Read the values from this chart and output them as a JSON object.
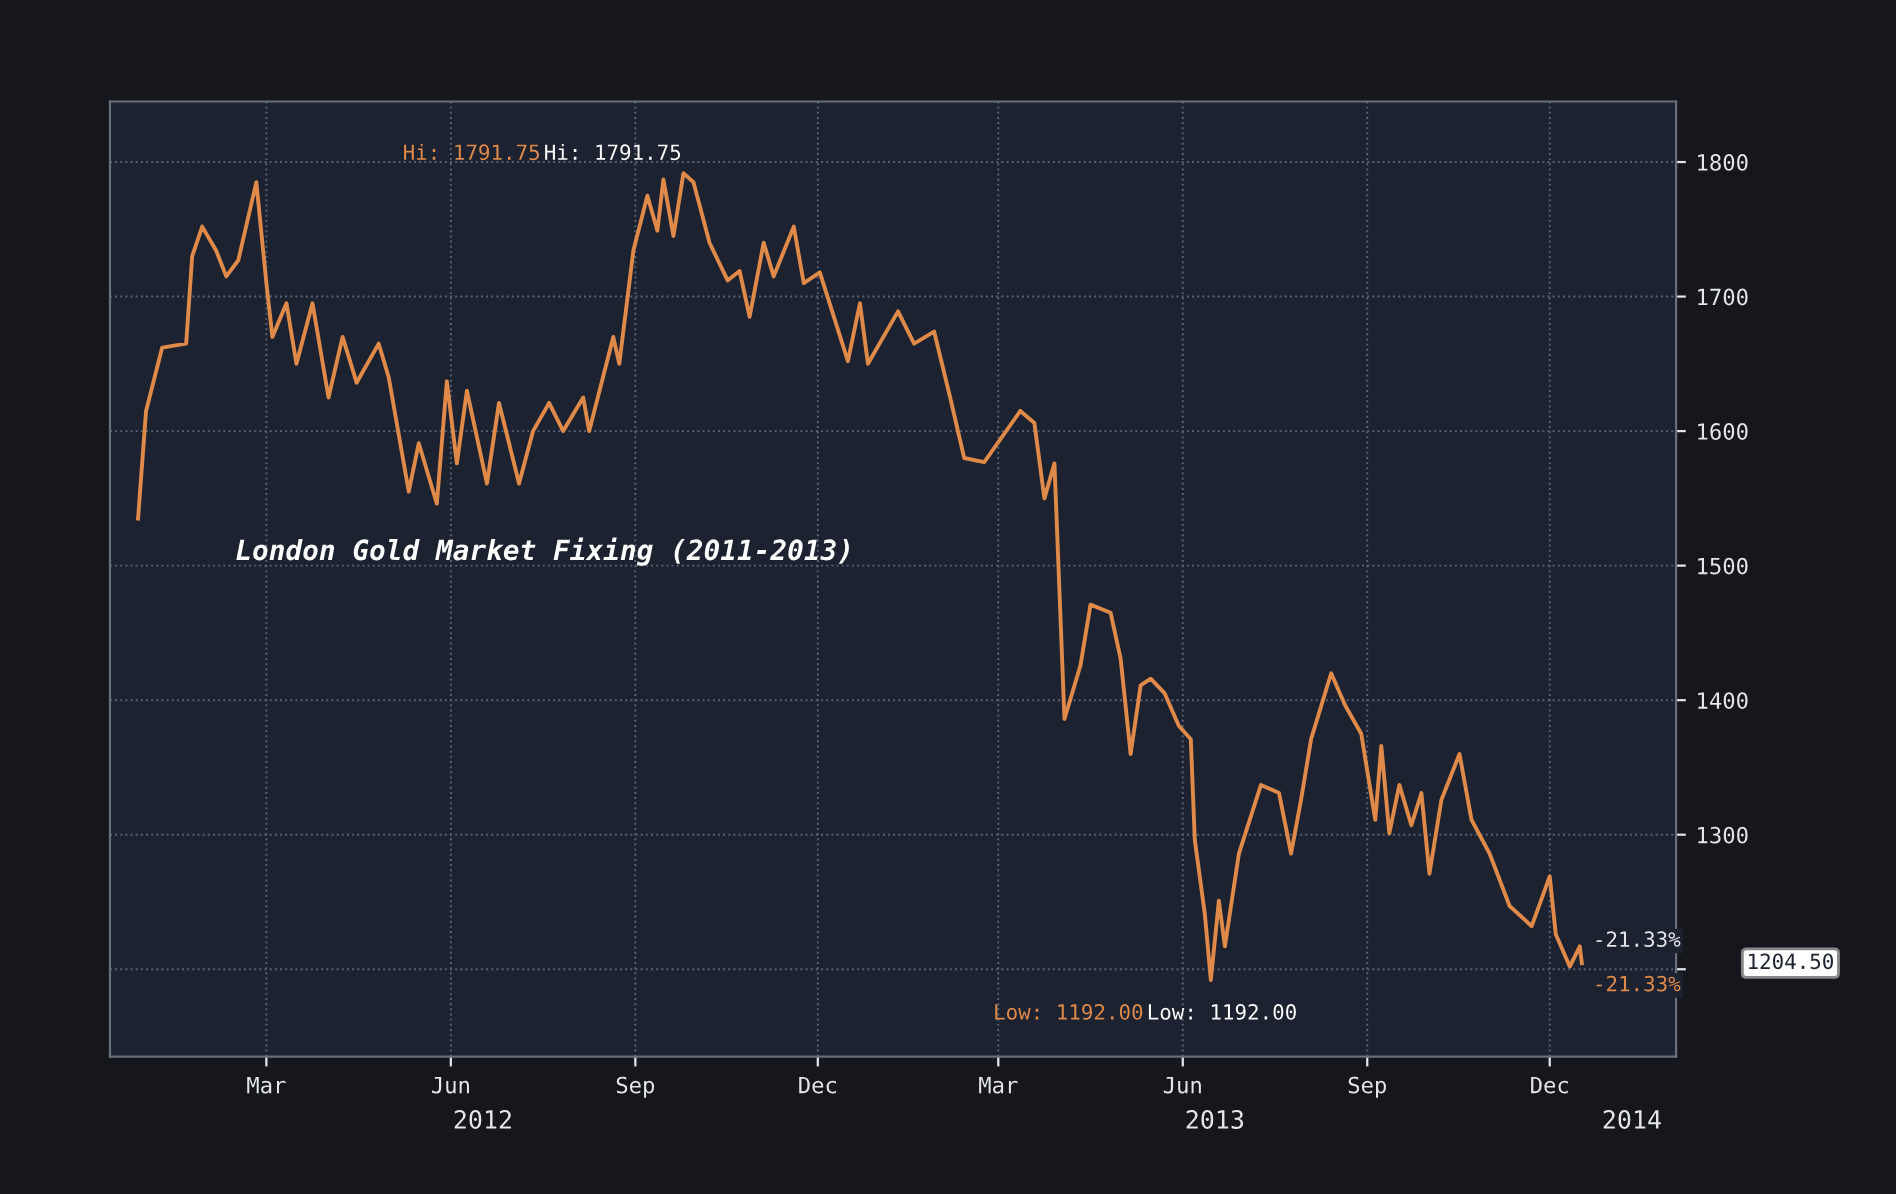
{
  "chart_data": {
    "type": "line",
    "title": "London Gold Market Fixing (2011-2013)",
    "x": [
      "2012-01-11",
      "2012-01-15",
      "2012-01-23",
      "2012-02-04",
      "2012-02-07",
      "2012-02-12",
      "2012-02-19",
      "2012-02-24",
      "2012-03-01",
      "2012-03-10",
      "2012-03-15",
      "2012-03-18",
      "2012-03-25",
      "2012-03-30",
      "2012-04-07",
      "2012-04-15",
      "2012-04-22",
      "2012-04-29",
      "2012-05-10",
      "2012-05-15",
      "2012-05-25",
      "2012-05-30",
      "2012-06-08",
      "2012-06-13",
      "2012-06-18",
      "2012-06-23",
      "2012-07-03",
      "2012-07-09",
      "2012-07-19",
      "2012-07-26",
      "2012-08-03",
      "2012-08-10",
      "2012-08-20",
      "2012-08-23",
      "2012-09-04",
      "2012-09-07",
      "2012-09-14",
      "2012-09-21",
      "2012-09-26",
      "2012-09-29",
      "2012-10-04",
      "2012-10-09",
      "2012-10-14",
      "2012-10-22",
      "2012-10-31",
      "2012-11-06",
      "2012-11-11",
      "2012-11-18",
      "2012-11-23",
      "2012-12-03",
      "2012-12-08",
      "2012-12-16",
      "2012-12-30",
      "2013-01-05",
      "2013-01-09",
      "2013-01-24",
      "2013-02-01",
      "2013-02-11",
      "2013-02-19",
      "2013-02-26",
      "2013-03-08",
      "2013-03-26",
      "2013-04-02",
      "2013-04-07",
      "2013-04-12",
      "2013-04-17",
      "2013-04-25",
      "2013-04-30",
      "2013-05-10",
      "2013-05-15",
      "2013-05-20",
      "2013-05-25",
      "2013-05-30",
      "2013-06-06",
      "2013-06-13",
      "2013-06-19",
      "2013-06-21",
      "2013-06-26",
      "2013-06-29",
      "2013-07-03",
      "2013-07-06",
      "2013-07-13",
      "2013-07-24",
      "2013-08-02",
      "2013-08-08",
      "2013-08-13",
      "2013-08-18",
      "2013-08-28",
      "2013-09-04",
      "2013-09-12",
      "2013-09-19",
      "2013-09-22",
      "2013-09-26",
      "2013-10-01",
      "2013-10-07",
      "2013-10-12",
      "2013-10-16",
      "2013-10-22",
      "2013-10-31",
      "2013-11-06",
      "2013-11-15",
      "2013-11-25",
      "2013-12-06",
      "2013-12-15",
      "2013-12-18",
      "2013-12-25",
      "2013-12-30",
      "2013-12-31"
    ],
    "series": [
      {
        "color": "#e08a4a",
        "values": [
          1535,
          1615,
          1662,
          1665,
          1730,
          1752,
          1734,
          1715,
          1727,
          1785,
          1710,
          1670,
          1695,
          1650,
          1695,
          1625,
          1670,
          1636,
          1665,
          1640,
          1555,
          1591,
          1546,
          1637,
          1576,
          1630,
          1561,
          1621,
          1561,
          1600,
          1621,
          1600,
          1625,
          1600,
          1670,
          1650,
          1734,
          1775,
          1749,
          1787,
          1745,
          1791.75,
          1785,
          1740,
          1712,
          1719,
          1685,
          1740,
          1715,
          1752,
          1710,
          1718,
          1652,
          1695,
          1650,
          1689,
          1665,
          1674,
          1625,
          1580,
          1577,
          1615,
          1606,
          1550,
          1576,
          1386,
          1426,
          1471,
          1465,
          1431,
          1360,
          1411,
          1416,
          1405,
          1381,
          1371,
          1296,
          1241,
          1192,
          1251,
          1217,
          1286,
          1337,
          1331,
          1286,
          1326,
          1371,
          1420,
          1396,
          1375,
          1311,
          1366,
          1301,
          1337,
          1307,
          1331,
          1271,
          1326,
          1360,
          1311,
          1286,
          1247,
          1232,
          1269,
          1226,
          1202,
          1217,
          1204.5
        ]
      }
    ],
    "xlim": [
      "2011-12-28",
      "2014-02-16"
    ],
    "xticks": [
      {
        "value": "2012-03-15",
        "label": "Mar"
      },
      {
        "value": "2012-06-15",
        "label": "Jun"
      },
      {
        "value": "2012-09-15",
        "label": "Sep"
      },
      {
        "value": "2012-12-15",
        "label": "Dec"
      },
      {
        "value": "2013-03-15",
        "label": "Mar"
      },
      {
        "value": "2013-06-15",
        "label": "Jun"
      },
      {
        "value": "2013-09-15",
        "label": "Sep"
      },
      {
        "value": "2013-12-15",
        "label": "Dec"
      }
    ],
    "x2lim": [
      "2011-12-28",
      "2014-02-16"
    ],
    "x2ticks": [
      {
        "value": "2012-07-01",
        "label": "2012"
      },
      {
        "value": "2013-07-01",
        "label": "2013"
      },
      {
        "value": "2014-01-25",
        "label": "2014"
      }
    ],
    "ylim": [
      1135,
      1845
    ],
    "yticks": [
      {
        "value": 1200,
        "label": null
      },
      1300,
      1400,
      1500,
      1600,
      1700,
      1800
    ],
    "grid": true,
    "line_style": "solid",
    "annotations": [
      "Hi: 1791.75",
      "Hi: 1791.75",
      "Low: 1192.00",
      "Low: 1192.00",
      {
        "text": "-21.33%",
        "x": "2013-12-31",
        "y": 1204.5
      },
      {
        "text": "-21.33%",
        "x": "2013-12-31",
        "y": 1204.5
      },
      "1204.50"
    ]
  }
}
